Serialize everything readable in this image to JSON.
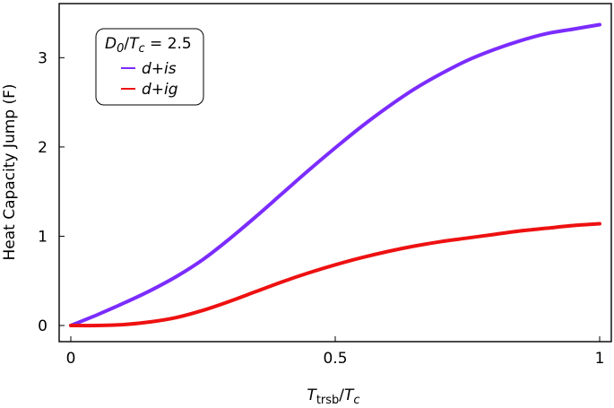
{
  "chart_data": {
    "type": "line",
    "x_label": {
      "main": "T",
      "sub": "trsb",
      "sep": "/",
      "main2": "T",
      "sub2": "c"
    },
    "y_label": "Heat Capacity Jump  (F)",
    "xlim": [
      0,
      1
    ],
    "ylim": [
      0,
      3.35
    ],
    "x_ticks": [
      {
        "value": 0,
        "label": "0"
      },
      {
        "value": 0.5,
        "label": "0.5"
      },
      {
        "value": 1,
        "label": "1"
      }
    ],
    "y_ticks": [
      {
        "value": 0,
        "label": "0"
      },
      {
        "value": 1,
        "label": "1"
      },
      {
        "value": 2,
        "label": "2"
      },
      {
        "value": 3,
        "label": "3"
      }
    ],
    "grid": false,
    "legend": {
      "position": "top-left",
      "header": {
        "main": "D",
        "sub": "0",
        "sep": "/",
        "main2": "T",
        "sub2": "c",
        "rest": " = 2.5"
      }
    },
    "series": [
      {
        "name": "d+is",
        "color": "#7b2cff",
        "x": [
          0,
          0.05,
          0.1,
          0.15,
          0.2,
          0.25,
          0.3,
          0.35,
          0.4,
          0.45,
          0.5,
          0.55,
          0.6,
          0.65,
          0.7,
          0.75,
          0.8,
          0.85,
          0.9,
          0.95,
          1.0
        ],
        "y": [
          0,
          0.12,
          0.25,
          0.39,
          0.55,
          0.74,
          0.97,
          1.22,
          1.48,
          1.74,
          1.99,
          2.23,
          2.45,
          2.65,
          2.82,
          2.97,
          3.09,
          3.19,
          3.27,
          3.32,
          3.37
        ]
      },
      {
        "name": "d+ig",
        "color": "#ee1111",
        "x": [
          0,
          0.05,
          0.1,
          0.15,
          0.2,
          0.25,
          0.3,
          0.35,
          0.4,
          0.45,
          0.5,
          0.55,
          0.6,
          0.65,
          0.7,
          0.75,
          0.8,
          0.85,
          0.9,
          0.95,
          1.0
        ],
        "y": [
          0,
          0.0,
          0.01,
          0.04,
          0.09,
          0.17,
          0.27,
          0.38,
          0.49,
          0.59,
          0.68,
          0.76,
          0.83,
          0.89,
          0.94,
          0.98,
          1.02,
          1.06,
          1.09,
          1.12,
          1.14
        ]
      }
    ]
  }
}
